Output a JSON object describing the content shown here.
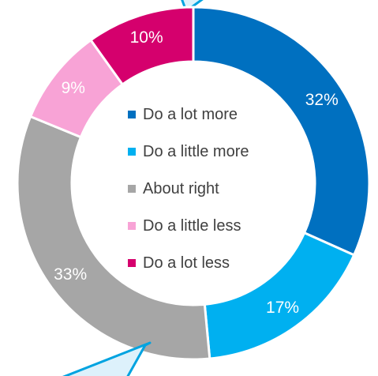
{
  "chart_data": {
    "type": "pie",
    "variant": "donut",
    "categories": [
      "Do a lot more",
      "Do a little more",
      "About right",
      "Do a little less",
      "Do a lot less"
    ],
    "values": [
      32,
      17,
      33,
      9,
      10
    ],
    "data_labels": [
      "32%",
      "17%",
      "33%",
      "9%",
      "10%"
    ],
    "colors": [
      "#0070c0",
      "#00b0f0",
      "#a6a6a6",
      "#f8a3d6",
      "#d5006d"
    ],
    "legend_position": "center",
    "start_angle_deg": 0,
    "direction": "clockwise"
  },
  "callouts": {
    "fill": "#ddf1fb",
    "stroke": "#00a3e0"
  }
}
